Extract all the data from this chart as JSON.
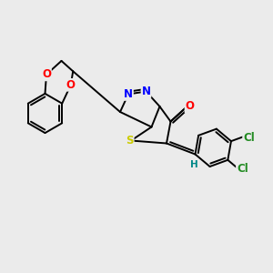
{
  "bg_color": "#ebebeb",
  "atom_colors": {
    "O": "#ff0000",
    "N": "#0000ff",
    "S": "#cccc00",
    "Cl": "#228b22",
    "H": "#008888",
    "C": "#000000"
  },
  "font_size": 8.5,
  "bond_width": 1.4,
  "figsize": [
    3.0,
    3.0
  ],
  "dpi": 100
}
